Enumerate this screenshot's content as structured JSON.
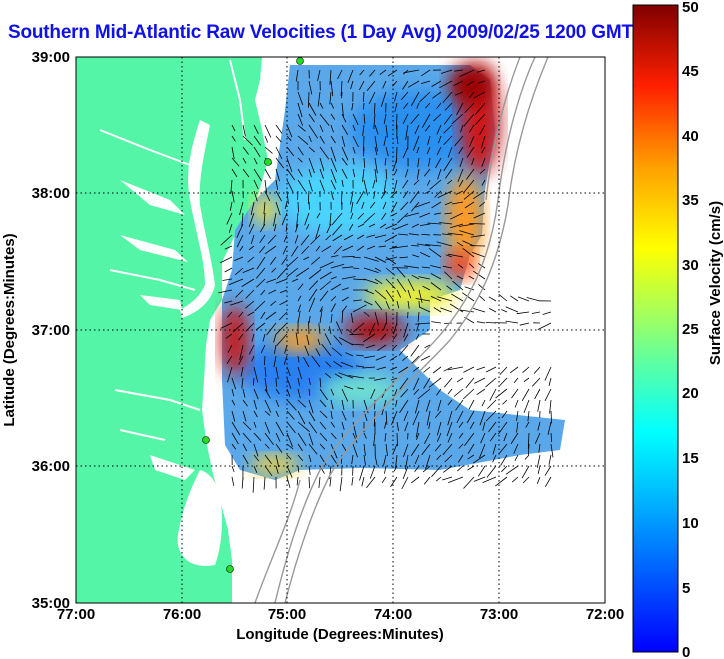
{
  "title": "Southern Mid-Atlantic Raw Velocities (1 Day Avg) 2009/02/25 1200 GMT",
  "map": {
    "x_axis_label": "Longitude (Degrees:Minutes)",
    "y_axis_label": "Latitude (Degrees:Minutes)",
    "x_ticks": [
      "77:00",
      "76:00",
      "75:00",
      "74:00",
      "73:00",
      "72:00"
    ],
    "y_ticks": [
      "39:00",
      "38:00",
      "37:00",
      "36:00",
      "35:00"
    ],
    "x_range_deg_west": [
      77,
      72
    ],
    "y_range_deg_north": [
      35,
      39
    ],
    "grid": "dotted",
    "land_color": "#55f5a8",
    "isobath_color": "#999999"
  },
  "colorbar": {
    "label": "Surface Velocity (cm/s)",
    "ticks": [
      "0",
      "5",
      "10",
      "15",
      "20",
      "25",
      "30",
      "35",
      "40",
      "45",
      "50"
    ],
    "range": [
      0,
      50
    ],
    "colormap": "jet"
  }
}
